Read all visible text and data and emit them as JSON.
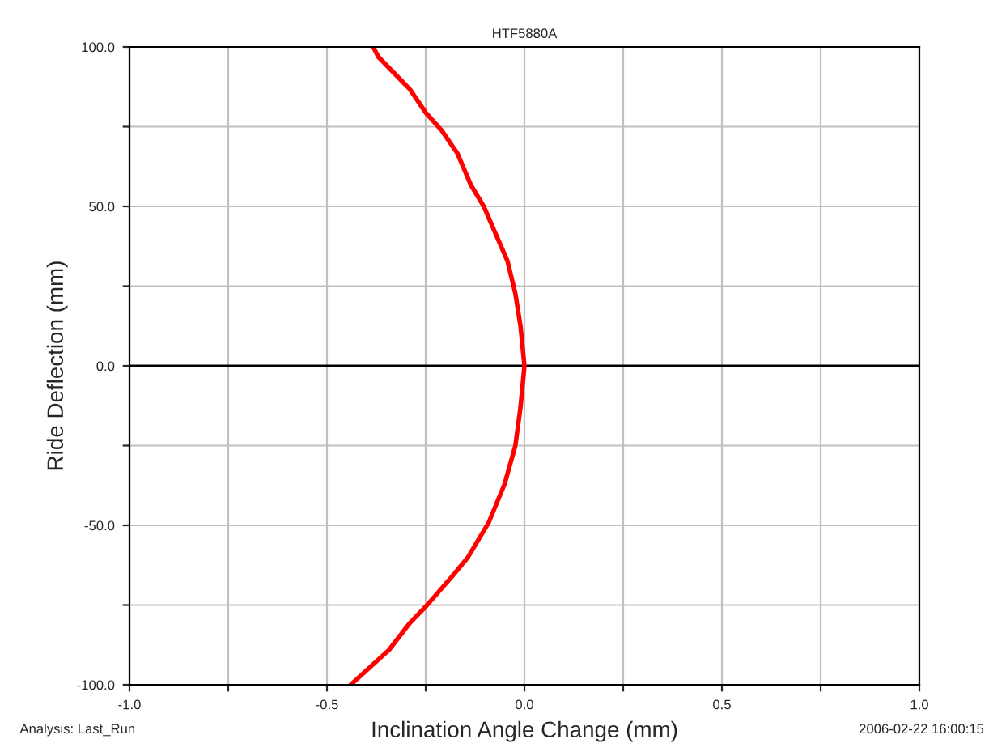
{
  "chart_data": {
    "type": "line",
    "title": "HTF5880A",
    "xlabel": "Inclination Angle Change (mm)",
    "ylabel": "Ride Deflection (mm)",
    "x": [
      -0.383,
      -0.37,
      -0.33,
      -0.29,
      -0.25,
      -0.21,
      -0.17,
      -0.136,
      -0.103,
      -0.07,
      -0.043,
      -0.023,
      -0.01,
      0.0,
      -0.01,
      -0.023,
      -0.05,
      -0.09,
      -0.143,
      -0.183,
      -0.25,
      -0.29,
      -0.343,
      -0.44
    ],
    "series": [
      {
        "color": "#ff0000",
        "values": [
          100,
          96.9,
          91.8,
          86.7,
          79.4,
          73.9,
          66.7,
          56.8,
          50,
          40.6,
          32.9,
          22.7,
          12.5,
          0,
          -13,
          -25,
          -37,
          -49,
          -60,
          -66,
          -75.5,
          -80.6,
          -89.1,
          -100
        ]
      }
    ],
    "xlim": [
      -1,
      1
    ],
    "ylim": [
      -100,
      100
    ],
    "xticks": [
      {
        "value": -1,
        "label": "-1.0"
      },
      {
        "value": -0.75,
        "label": null
      },
      {
        "value": -0.5,
        "label": "-0.5"
      },
      {
        "value": -0.25,
        "label": null
      },
      {
        "value": 0,
        "label": "0.0"
      },
      {
        "value": 0.25,
        "label": null
      },
      {
        "value": 0.5,
        "label": "0.5"
      },
      {
        "value": 0.75,
        "label": null
      },
      {
        "value": 1,
        "label": "1.0"
      }
    ],
    "yticks": [
      {
        "value": -100,
        "label": "-100.0"
      },
      {
        "value": -75,
        "label": null
      },
      {
        "value": -50,
        "label": "-50.0"
      },
      {
        "value": -25,
        "label": null
      },
      {
        "value": 0,
        "label": "0.0"
      },
      {
        "value": 25,
        "label": null
      },
      {
        "value": 50,
        "label": "50.0"
      },
      {
        "value": 75,
        "label": null
      },
      {
        "value": 100,
        "label": "100.0"
      }
    ],
    "ref_lines": [
      {
        "axis": "y",
        "value": 0,
        "color": "#000000"
      }
    ],
    "grid": true,
    "legend": false,
    "marker": "none",
    "line_style": "solid",
    "annotations": [
      "Analysis: Last_Run",
      "2006-02-22 16:00:15"
    ]
  }
}
